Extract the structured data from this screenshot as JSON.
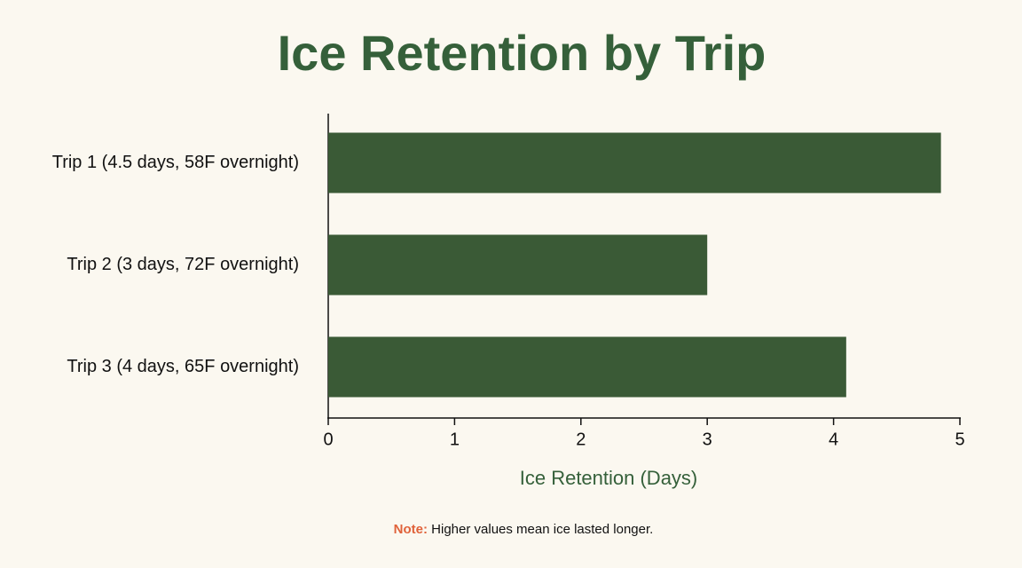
{
  "chart_data": {
    "type": "barh",
    "title": "Ice Retention by Trip",
    "categories": [
      "Trip 1 (4.5 days, 58F overnight)",
      "Trip 2 (3 days, 72F overnight)",
      "Trip 3 (4 days, 65F overnight)"
    ],
    "values": [
      4.85,
      3.0,
      4.1
    ],
    "color": "#3a5a36",
    "x_label": "Ice Retention (Days)",
    "xlim": [
      0,
      5
    ],
    "xticks": [
      0,
      1,
      2,
      3,
      4,
      5
    ],
    "grid": false,
    "note_label": "Note:",
    "note_text": "Higher values mean ice lasted longer."
  }
}
